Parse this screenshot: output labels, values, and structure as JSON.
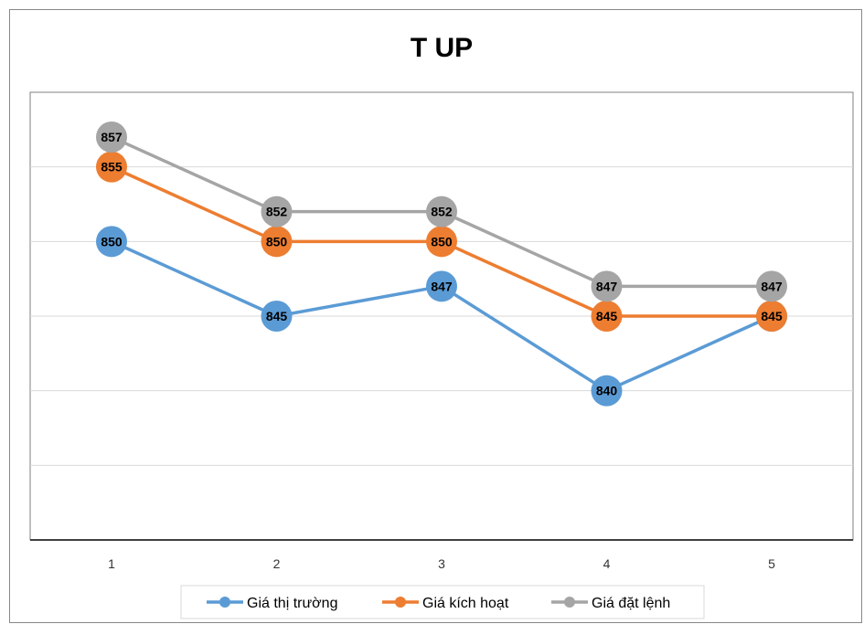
{
  "chart_data": {
    "type": "line",
    "title": "T UP",
    "xlabel": "",
    "ylabel": "",
    "categories": [
      "1",
      "2",
      "3",
      "4",
      "5"
    ],
    "ylim": [
      830,
      860
    ],
    "gridlines": [
      835,
      840,
      845,
      850,
      855
    ],
    "grid": true,
    "y_tick_labels_visible": false,
    "data_labels": true,
    "legend_position": "bottom",
    "series": [
      {
        "name": "Giá thị trường",
        "color": "#5B9BD5",
        "values": [
          850,
          845,
          847,
          840,
          845
        ]
      },
      {
        "name": "Giá kích hoạt",
        "color": "#ED7D31",
        "values": [
          855,
          850,
          850,
          845,
          845
        ]
      },
      {
        "name": "Giá đặt lệnh",
        "color": "#A5A5A5",
        "values": [
          857,
          852,
          852,
          847,
          847
        ]
      }
    ]
  }
}
